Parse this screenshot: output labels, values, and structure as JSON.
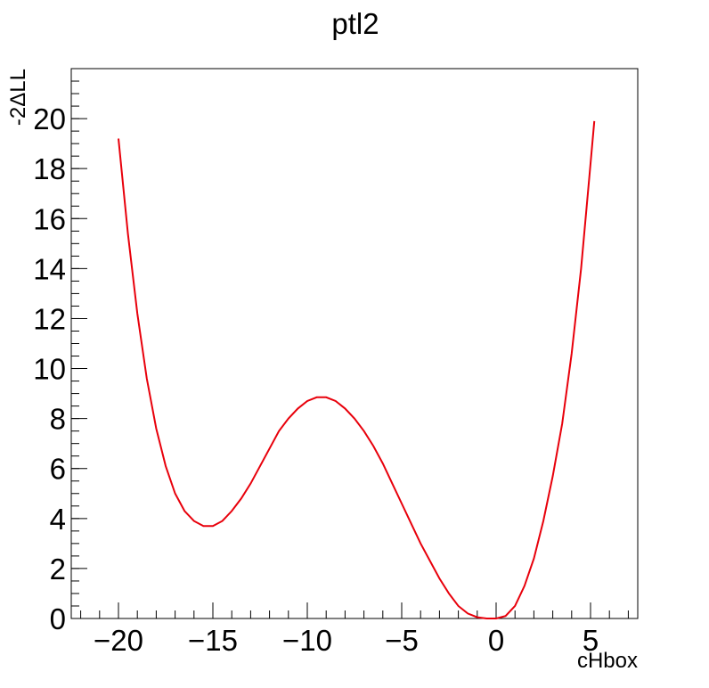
{
  "chart_data": {
    "type": "line",
    "title": "ptl2",
    "xlabel": "cHbox",
    "ylabel": "-2ΔLL",
    "xlim": [
      -22.5,
      7.5
    ],
    "ylim": [
      0,
      22
    ],
    "xticks": [
      -20,
      -15,
      -10,
      -5,
      0,
      5
    ],
    "xtick_labels": [
      "−20",
      "−15",
      "−10",
      "−5",
      "0",
      "5"
    ],
    "yticks": [
      0,
      2,
      4,
      6,
      8,
      10,
      12,
      14,
      16,
      18,
      20
    ],
    "ytick_labels": [
      "0",
      "2",
      "4",
      "6",
      "8",
      "10",
      "12",
      "14",
      "16",
      "18",
      "20"
    ],
    "grid": false,
    "series": [
      {
        "color": "#e8000b",
        "x": [
          -20,
          -19.5,
          -19,
          -18.5,
          -18,
          -17.5,
          -17,
          -16.5,
          -16,
          -15.5,
          -15,
          -14.5,
          -14,
          -13.5,
          -13,
          -12.5,
          -12,
          -11.5,
          -11,
          -10.5,
          -10,
          -9.5,
          -9,
          -8.5,
          -8,
          -7.5,
          -7,
          -6.5,
          -6,
          -5.5,
          -5,
          -4.5,
          -4,
          -3.5,
          -3,
          -2.5,
          -2,
          -1.5,
          -1,
          -0.5,
          0,
          0.5,
          1,
          1.5,
          2,
          2.5,
          3,
          3.5,
          4,
          4.5,
          5,
          5.2
        ],
        "y": [
          19.2,
          15.4,
          12.2,
          9.6,
          7.6,
          6.1,
          5.0,
          4.3,
          3.9,
          3.7,
          3.7,
          3.9,
          4.3,
          4.8,
          5.4,
          6.1,
          6.8,
          7.5,
          8.0,
          8.4,
          8.7,
          8.85,
          8.85,
          8.7,
          8.4,
          8.0,
          7.5,
          6.9,
          6.2,
          5.4,
          4.6,
          3.8,
          3.0,
          2.3,
          1.6,
          1.0,
          0.5,
          0.2,
          0.05,
          0.0,
          0.0,
          0.1,
          0.5,
          1.3,
          2.4,
          3.9,
          5.7,
          7.8,
          10.6,
          14.0,
          18.2,
          19.9
        ]
      }
    ]
  }
}
